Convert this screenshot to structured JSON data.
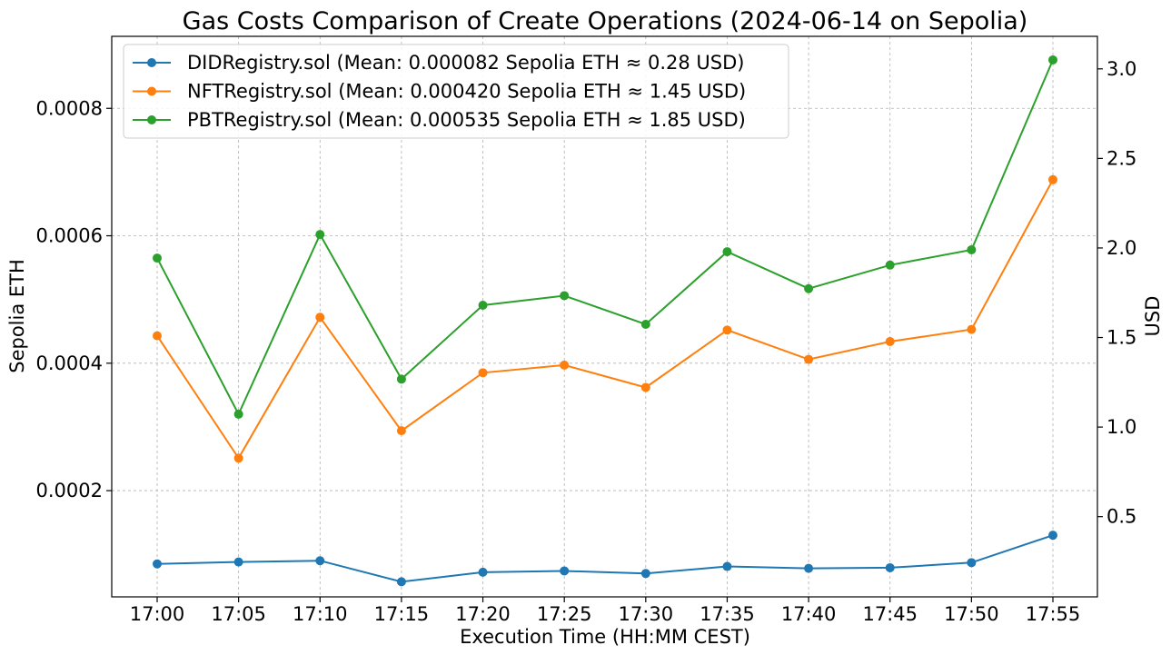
{
  "chart_data": {
    "type": "line",
    "title": "Gas Costs Comparison of Create Operations (2024-06-14 on Sepolia)",
    "xlabel": "Execution Time (HH:MM CEST)",
    "ylabel": "Sepolia ETH",
    "y2label": "USD",
    "categories": [
      "17:00",
      "17:05",
      "17:10",
      "17:15",
      "17:20",
      "17:25",
      "17:30",
      "17:35",
      "17:40",
      "17:45",
      "17:50",
      "17:55"
    ],
    "ylim": [
      3.33e-05,
      0.000913
    ],
    "yticks": [
      "0.0002",
      "0.0004",
      "0.0006",
      "0.0008"
    ],
    "ytick_values": [
      0.0002,
      0.0004,
      0.0006,
      0.0008
    ],
    "y2lim": [
      0.052,
      3.1816
    ],
    "y2ticks": [
      "0.5",
      "1.0",
      "1.5",
      "2.0",
      "2.5",
      "3.0"
    ],
    "y2tick_values": [
      0.5,
      1.0,
      1.5,
      2.0,
      2.5,
      3.0
    ],
    "grid": true,
    "legend_position": "upper-left",
    "series": [
      {
        "name": "DIDRegistry.sol (Mean: 0.000082 Sepolia ETH ≈ 0.28 USD)",
        "color": "#1f77b4",
        "values": [
          8.5e-05,
          8.8e-05,
          9e-05,
          5.7e-05,
          7.2e-05,
          7.4e-05,
          7e-05,
          8.1e-05,
          7.8e-05,
          7.9e-05,
          8.7e-05,
          0.00013
        ]
      },
      {
        "name": "NFTRegistry.sol (Mean: 0.000420 Sepolia ETH ≈ 1.45 USD)",
        "color": "#ff7f0e",
        "values": [
          0.000443,
          0.000251,
          0.000472,
          0.000294,
          0.000385,
          0.000397,
          0.000362,
          0.000452,
          0.000406,
          0.000434,
          0.000453,
          0.000688
        ]
      },
      {
        "name": "PBTRegistry.sol (Mean: 0.000535 Sepolia ETH ≈ 1.85 USD)",
        "color": "#2ca02c",
        "values": [
          0.000565,
          0.00032,
          0.000602,
          0.000375,
          0.000491,
          0.000506,
          0.000461,
          0.000575,
          0.000517,
          0.000554,
          0.000578,
          0.000876
        ]
      }
    ]
  }
}
